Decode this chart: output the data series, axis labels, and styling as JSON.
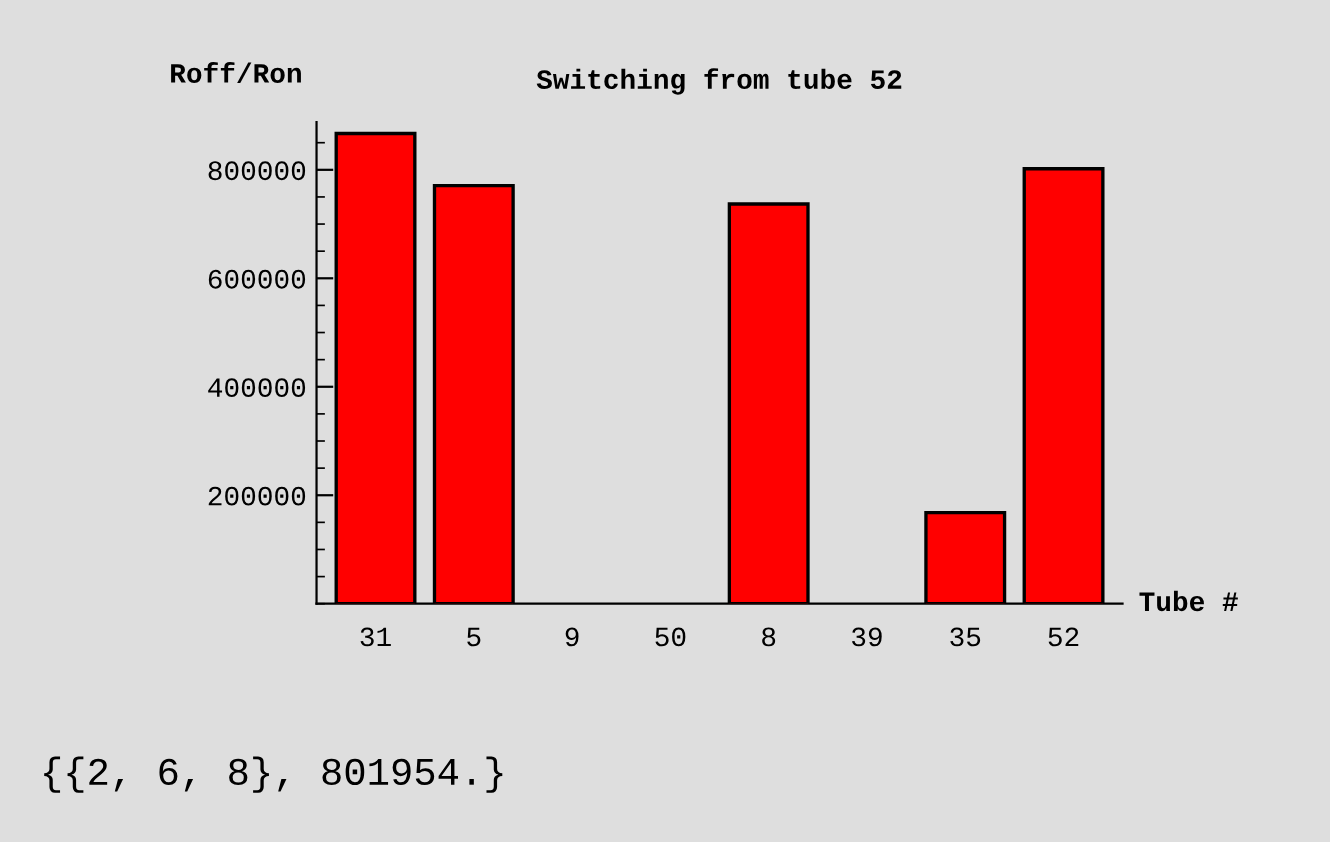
{
  "chart_data": {
    "type": "bar",
    "title": "Switching from tube 52",
    "ylabel": "Roff/Ron",
    "xlabel": "Tube #",
    "categories": [
      "31",
      "5",
      "9",
      "50",
      "8",
      "39",
      "35",
      "52"
    ],
    "values": [
      867000,
      771000,
      null,
      null,
      737000,
      null,
      168000,
      801954
    ],
    "color": "#ff0000",
    "ylim": [
      0,
      888000
    ],
    "yticks": [
      200000,
      400000,
      600000,
      800000
    ],
    "grid": false,
    "legend": false,
    "annotations": [
      "{{2, 6, 8}, 801954.}"
    ]
  }
}
